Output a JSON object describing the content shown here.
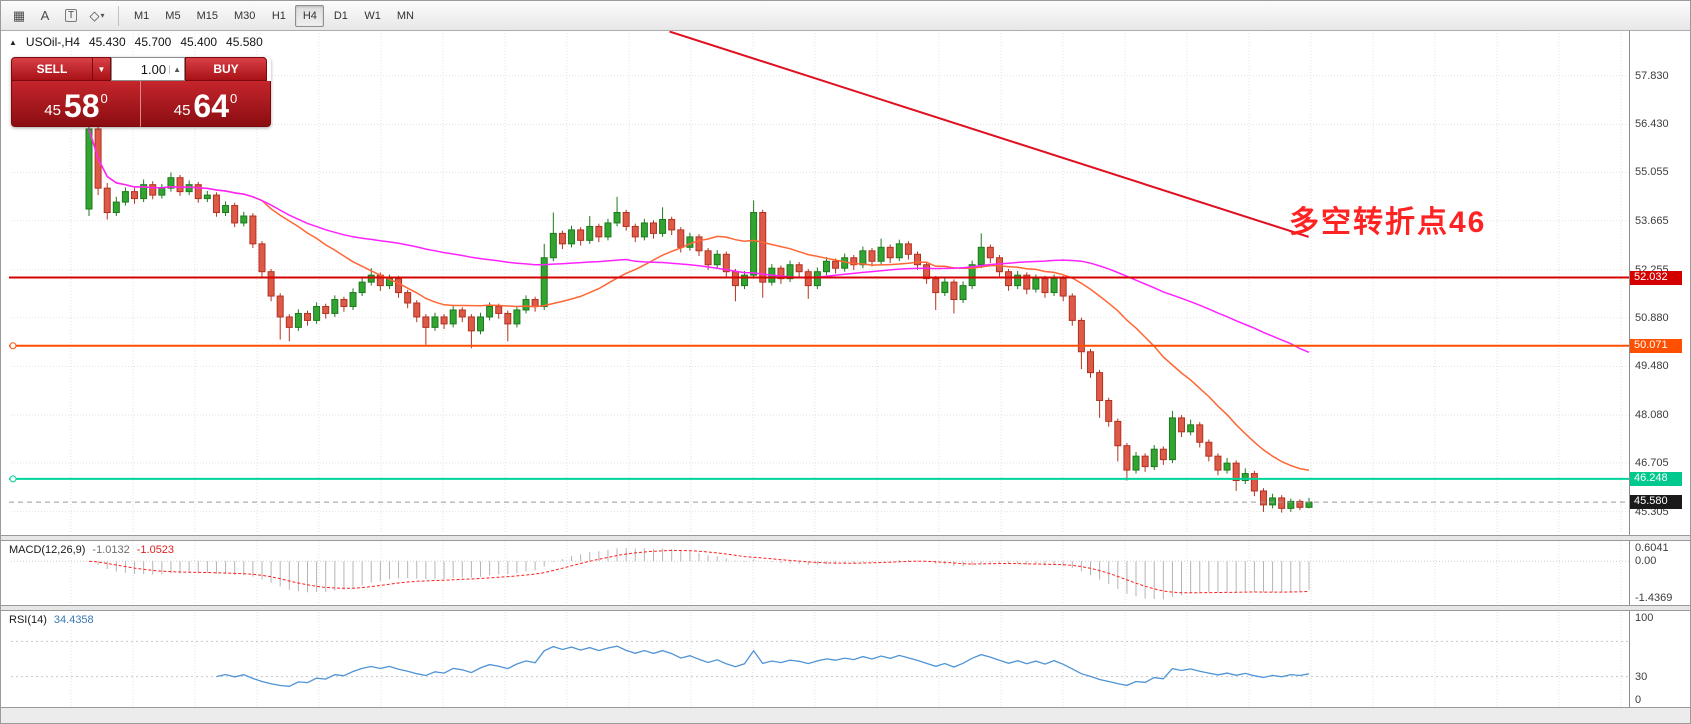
{
  "window": {
    "bg": "#ffffff",
    "chrome_bg": "#ececec"
  },
  "toolbar": {
    "tools": [
      {
        "name": "grid-icon",
        "glyph": "▦"
      },
      {
        "name": "text-label-icon",
        "glyph": "A"
      },
      {
        "name": "text-frame-icon",
        "glyph": "T",
        "boxed": true
      },
      {
        "name": "objects-icon",
        "glyph": "◇",
        "caret": "▾"
      }
    ],
    "timeframes": [
      "M1",
      "M5",
      "M15",
      "M30",
      "H1",
      "H4",
      "D1",
      "W1",
      "MN"
    ],
    "active_timeframe": "H4"
  },
  "chart": {
    "header_marker": "▲",
    "symbol_header": "USOil-,H4",
    "ohlc": {
      "open": "45.430",
      "high": "45.700",
      "low": "45.400",
      "close": "45.580"
    },
    "annotation": {
      "text": "多空转折点46",
      "color": "#ff2222"
    },
    "trade_panel": {
      "sell_label": "SELL",
      "buy_label": "BUY",
      "volume": "1.00",
      "sell_price": {
        "small": "45",
        "big": "58",
        "sup": "0"
      },
      "buy_price": {
        "small": "45",
        "big": "64",
        "sup": "0"
      }
    },
    "price_axis": {
      "labels": [
        "57.830",
        "56.430",
        "55.055",
        "53.665",
        "52.255",
        "50.880",
        "49.480",
        "48.080",
        "46.705",
        "45.305"
      ],
      "tags": [
        {
          "label": "52.032",
          "price": 52.032,
          "color": "#d40000"
        },
        {
          "label": "50.071",
          "price": 50.071,
          "color": "#ff4f00"
        },
        {
          "label": "46.248",
          "price": 46.248,
          "color": "#00c98f"
        },
        {
          "label": "45.580",
          "price": 45.58,
          "color": "#1a1a1a"
        }
      ]
    }
  },
  "macd": {
    "header_label": "MACD(12,26,9)",
    "value_main": "-1.0132",
    "value_signal": "-1.0523",
    "scale": [
      {
        "label": "0.6041",
        "value": 0.6041
      },
      {
        "label": "0.00",
        "value": 0
      },
      {
        "label": "-1.4369",
        "value": -1.4369
      }
    ]
  },
  "rsi": {
    "header_label": "RSI(14)",
    "value": "34.4358",
    "scale": [
      {
        "label": "100",
        "value": 100
      },
      {
        "label": "30",
        "value": 30
      },
      {
        "label": "0",
        "value": 0
      }
    ]
  },
  "chart_data": {
    "type": "candlestick",
    "symbol": "USOil-",
    "timeframe": "H4",
    "title": "USOil-,H4",
    "y_range": [
      44.75,
      59.0
    ],
    "price_ticks": [
      57.83,
      56.43,
      55.055,
      53.665,
      52.255,
      50.88,
      49.48,
      48.08,
      46.705,
      45.305
    ],
    "candles": [
      [
        54.0,
        56.5,
        53.8,
        56.3
      ],
      [
        56.3,
        56.45,
        54.4,
        54.6
      ],
      [
        54.6,
        54.75,
        53.7,
        53.9
      ],
      [
        53.9,
        54.35,
        53.8,
        54.2
      ],
      [
        54.2,
        54.62,
        54.1,
        54.5
      ],
      [
        54.5,
        54.6,
        54.15,
        54.3
      ],
      [
        54.3,
        54.85,
        54.2,
        54.7
      ],
      [
        54.7,
        54.8,
        54.28,
        54.4
      ],
      [
        54.4,
        54.72,
        54.3,
        54.6
      ],
      [
        54.6,
        55.05,
        54.5,
        54.9
      ],
      [
        54.9,
        54.98,
        54.38,
        54.5
      ],
      [
        54.5,
        54.82,
        54.4,
        54.7
      ],
      [
        54.7,
        54.78,
        54.18,
        54.3
      ],
      [
        54.3,
        54.52,
        54.2,
        54.4
      ],
      [
        54.4,
        54.48,
        53.78,
        53.9
      ],
      [
        53.9,
        54.22,
        53.8,
        54.1
      ],
      [
        54.1,
        54.18,
        53.48,
        53.6
      ],
      [
        53.6,
        53.92,
        53.5,
        53.8
      ],
      [
        53.8,
        53.88,
        52.88,
        53.0
      ],
      [
        53.0,
        53.08,
        52.05,
        52.2
      ],
      [
        52.2,
        52.28,
        51.35,
        51.5
      ],
      [
        51.5,
        51.58,
        50.25,
        50.9
      ],
      [
        50.9,
        50.98,
        50.2,
        50.6
      ],
      [
        50.6,
        51.12,
        50.5,
        51.0
      ],
      [
        51.0,
        51.08,
        50.65,
        50.8
      ],
      [
        50.8,
        51.32,
        50.7,
        51.2
      ],
      [
        51.2,
        51.28,
        50.85,
        51.0
      ],
      [
        51.0,
        51.52,
        50.9,
        51.4
      ],
      [
        51.4,
        51.48,
        51.05,
        51.2
      ],
      [
        51.2,
        51.72,
        51.1,
        51.6
      ],
      [
        51.6,
        52.02,
        51.5,
        51.9
      ],
      [
        51.9,
        52.3,
        51.8,
        52.1
      ],
      [
        52.1,
        52.18,
        51.65,
        51.8
      ],
      [
        51.8,
        52.12,
        51.7,
        52.0
      ],
      [
        52.0,
        52.08,
        51.45,
        51.6
      ],
      [
        51.6,
        51.68,
        51.15,
        51.3
      ],
      [
        51.3,
        51.38,
        50.75,
        50.9
      ],
      [
        50.9,
        50.98,
        50.1,
        50.6
      ],
      [
        50.6,
        51.02,
        50.5,
        50.9
      ],
      [
        50.9,
        50.98,
        50.55,
        50.7
      ],
      [
        50.7,
        51.22,
        50.6,
        51.1
      ],
      [
        51.1,
        51.18,
        50.75,
        50.9
      ],
      [
        50.9,
        50.98,
        50.0,
        50.5
      ],
      [
        50.5,
        51.02,
        50.4,
        50.9
      ],
      [
        50.9,
        51.32,
        50.8,
        51.2
      ],
      [
        51.2,
        51.28,
        50.85,
        51.0
      ],
      [
        51.0,
        51.08,
        50.2,
        50.7
      ],
      [
        50.7,
        51.22,
        50.6,
        51.1
      ],
      [
        51.1,
        51.52,
        51.0,
        51.4
      ],
      [
        51.4,
        51.48,
        51.05,
        51.2
      ],
      [
        51.2,
        53.0,
        51.1,
        52.6
      ],
      [
        52.6,
        53.9,
        52.5,
        53.3
      ],
      [
        53.3,
        53.38,
        52.85,
        53.0
      ],
      [
        53.0,
        53.52,
        52.9,
        53.4
      ],
      [
        53.4,
        53.48,
        52.95,
        53.1
      ],
      [
        53.1,
        53.8,
        53.0,
        53.5
      ],
      [
        53.5,
        53.58,
        53.05,
        53.2
      ],
      [
        53.2,
        53.72,
        53.1,
        53.6
      ],
      [
        53.6,
        54.35,
        53.5,
        53.9
      ],
      [
        53.9,
        53.98,
        53.38,
        53.5
      ],
      [
        53.5,
        53.58,
        53.05,
        53.2
      ],
      [
        53.2,
        53.72,
        53.1,
        53.6
      ],
      [
        53.6,
        53.68,
        53.15,
        53.3
      ],
      [
        53.3,
        54.05,
        53.2,
        53.7
      ],
      [
        53.7,
        53.78,
        53.25,
        53.4
      ],
      [
        53.4,
        53.48,
        52.75,
        52.9
      ],
      [
        52.9,
        53.32,
        52.8,
        53.2
      ],
      [
        53.2,
        53.28,
        52.65,
        52.8
      ],
      [
        52.8,
        52.88,
        52.25,
        52.4
      ],
      [
        52.4,
        52.82,
        52.3,
        52.7
      ],
      [
        52.7,
        52.78,
        52.05,
        52.2
      ],
      [
        52.2,
        52.28,
        51.35,
        51.8
      ],
      [
        51.8,
        52.22,
        51.7,
        52.1
      ],
      [
        52.1,
        54.25,
        52.0,
        53.9
      ],
      [
        53.9,
        53.98,
        51.45,
        51.9
      ],
      [
        51.9,
        52.42,
        51.8,
        52.3
      ],
      [
        52.3,
        52.38,
        51.85,
        52.0
      ],
      [
        52.0,
        52.52,
        51.9,
        52.4
      ],
      [
        52.4,
        52.48,
        52.05,
        52.2
      ],
      [
        52.2,
        52.28,
        51.42,
        51.8
      ],
      [
        51.8,
        52.32,
        51.7,
        52.2
      ],
      [
        52.2,
        52.62,
        52.1,
        52.5
      ],
      [
        52.5,
        52.58,
        52.15,
        52.3
      ],
      [
        52.3,
        52.72,
        52.2,
        52.6
      ],
      [
        52.6,
        52.68,
        52.25,
        52.4
      ],
      [
        52.4,
        52.92,
        52.3,
        52.8
      ],
      [
        52.8,
        52.88,
        52.35,
        52.5
      ],
      [
        52.5,
        53.15,
        52.4,
        52.9
      ],
      [
        52.9,
        52.98,
        52.45,
        52.6
      ],
      [
        52.6,
        53.12,
        52.5,
        53.0
      ],
      [
        53.0,
        53.08,
        52.55,
        52.7
      ],
      [
        52.7,
        52.78,
        52.25,
        52.4
      ],
      [
        52.4,
        52.48,
        51.85,
        52.0
      ],
      [
        52.0,
        52.08,
        51.1,
        51.6
      ],
      [
        51.6,
        52.02,
        51.5,
        51.9
      ],
      [
        51.9,
        51.98,
        51.0,
        51.4
      ],
      [
        51.4,
        51.92,
        51.3,
        51.8
      ],
      [
        51.8,
        52.52,
        51.7,
        52.4
      ],
      [
        52.4,
        53.3,
        52.3,
        52.9
      ],
      [
        52.9,
        52.98,
        52.45,
        52.6
      ],
      [
        52.6,
        52.68,
        52.05,
        52.2
      ],
      [
        52.2,
        52.28,
        51.65,
        51.8
      ],
      [
        51.8,
        52.22,
        51.7,
        52.1
      ],
      [
        52.1,
        52.18,
        51.55,
        51.7
      ],
      [
        51.7,
        52.12,
        51.6,
        52.0
      ],
      [
        52.0,
        52.08,
        51.45,
        51.6
      ],
      [
        51.6,
        52.12,
        51.5,
        52.0
      ],
      [
        52.0,
        52.08,
        51.35,
        51.5
      ],
      [
        51.5,
        51.58,
        50.65,
        50.8
      ],
      [
        50.8,
        50.88,
        49.4,
        49.9
      ],
      [
        49.9,
        49.98,
        49.15,
        49.3
      ],
      [
        49.3,
        49.38,
        48.0,
        48.5
      ],
      [
        48.5,
        48.58,
        47.75,
        47.9
      ],
      [
        47.9,
        47.98,
        46.75,
        47.2
      ],
      [
        47.2,
        47.28,
        46.2,
        46.5
      ],
      [
        46.5,
        47.02,
        46.4,
        46.9
      ],
      [
        46.9,
        46.98,
        46.45,
        46.6
      ],
      [
        46.6,
        47.22,
        46.5,
        47.1
      ],
      [
        47.1,
        47.18,
        46.65,
        46.8
      ],
      [
        46.8,
        48.2,
        46.7,
        48.0
      ],
      [
        48.0,
        48.08,
        47.45,
        47.6
      ],
      [
        47.6,
        47.95,
        47.5,
        47.8
      ],
      [
        47.8,
        47.88,
        47.15,
        47.3
      ],
      [
        47.3,
        47.38,
        46.75,
        46.9
      ],
      [
        46.9,
        46.98,
        46.35,
        46.5
      ],
      [
        46.5,
        46.85,
        46.4,
        46.7
      ],
      [
        46.7,
        46.78,
        45.9,
        46.2
      ],
      [
        46.2,
        46.55,
        46.1,
        46.4
      ],
      [
        46.4,
        46.48,
        45.75,
        45.9
      ],
      [
        45.9,
        45.98,
        45.3,
        45.5
      ],
      [
        45.5,
        45.82,
        45.4,
        45.7
      ],
      [
        45.7,
        45.78,
        45.28,
        45.4
      ],
      [
        45.4,
        45.68,
        45.3,
        45.6
      ],
      [
        45.6,
        45.66,
        45.35,
        45.43
      ],
      [
        45.43,
        45.7,
        45.4,
        45.58
      ]
    ],
    "overlays": [
      {
        "name": "ma-fast",
        "type": "sma",
        "period": 20,
        "color": "#ff6633"
      },
      {
        "name": "ma-slow",
        "type": "sma",
        "period": 60,
        "color": "#ff22ff"
      }
    ],
    "hlines": [
      {
        "price": 52.032,
        "color": "#d40000",
        "width": 2,
        "style": "solid",
        "marker": false
      },
      {
        "price": 50.071,
        "color": "#ff4f00",
        "width": 2,
        "style": "solid",
        "marker": true
      },
      {
        "price": 46.248,
        "color": "#00d49b",
        "width": 2,
        "style": "solid",
        "marker": true
      },
      {
        "price": 45.58,
        "color": "#9a9a9a",
        "width": 1,
        "style": "dashed",
        "marker": false
      }
    ],
    "trendline": {
      "x1_frac": 0.407,
      "price1": 59.1,
      "x2_frac": 0.802,
      "price2": 53.2,
      "color": "#e01020",
      "width": 2
    },
    "indicators": {
      "macd": {
        "fast": 12,
        "slow": 26,
        "signal": 9,
        "scale_min": -1.6,
        "scale_max": 0.7,
        "hist_color": "#b4b4b4",
        "signal_color": "#ff2020"
      },
      "rsi": {
        "period": 14,
        "color": "#4f94d4",
        "levels": [
          70,
          30
        ]
      }
    }
  }
}
